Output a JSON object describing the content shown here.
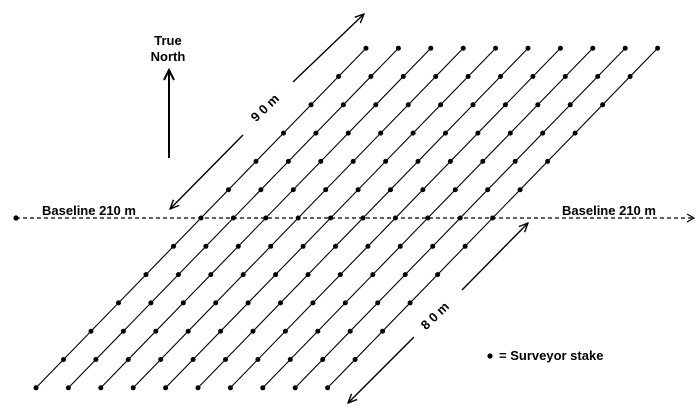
{
  "diagram": {
    "north_label_line1": "True",
    "north_label_line2": "North",
    "baseline_label_left": "Baseline  210 m",
    "baseline_label_right": "Baseline  210 m",
    "upper_dimension_label": "9 0  m",
    "lower_dimension_label": "8 0  m",
    "legend_label": "= Surveyor stake",
    "transect_count": 10,
    "stakes_above_baseline_per_transect": 6,
    "stakes_below_baseline_per_transect": 6,
    "colors": {
      "line": "#000000",
      "stake": "#000000",
      "background": "#ffffff"
    },
    "icons": [
      "north-arrow-icon",
      "surveyor-stake-icon"
    ]
  }
}
